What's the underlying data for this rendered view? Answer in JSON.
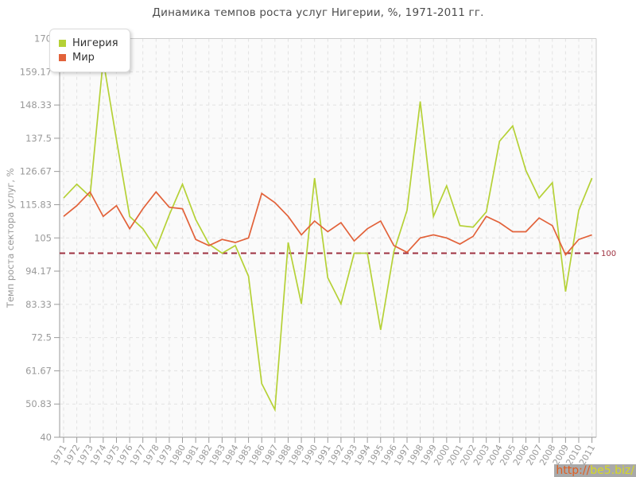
{
  "title": "Динамика темпов роста услуг Нигерии, %, 1971-2011 гг.",
  "legend": {
    "items": [
      {
        "label": "Нигерия",
        "color": "#b5d136"
      },
      {
        "label": "Мир",
        "color": "#e2623a"
      }
    ]
  },
  "watermark": {
    "prefix": "http://",
    "domain": "be5.biz/"
  },
  "reference_line": {
    "value": 100,
    "label": "100",
    "color": "#9e3140"
  },
  "y_axis_title": "Темп роста сектора услуг, %",
  "chart_data": {
    "type": "line",
    "title": "Динамика темпов роста услуг Нигерии, %, 1971-2011 гг.",
    "ylabel": "Темп роста сектора услуг, %",
    "xlabel": "",
    "ylim": [
      40,
      170
    ],
    "ytick_labels": [
      "170",
      "159.17",
      "148.33",
      "137.5",
      "126.67",
      "115.83",
      "105",
      "94.17",
      "83.33",
      "72.5",
      "61.67",
      "50.83",
      "40"
    ],
    "yticks": [
      170,
      159.17,
      148.33,
      137.5,
      126.67,
      115.83,
      105,
      94.17,
      83.33,
      72.5,
      61.67,
      50.83,
      40
    ],
    "grid": true,
    "legend_position": "top-left",
    "reference_line": 100,
    "x": [
      1971,
      1972,
      1973,
      1974,
      1975,
      1976,
      1977,
      1978,
      1979,
      1980,
      1981,
      1982,
      1983,
      1984,
      1985,
      1986,
      1987,
      1988,
      1989,
      1990,
      1991,
      1992,
      1993,
      1994,
      1995,
      1996,
      1997,
      1998,
      1999,
      2000,
      2001,
      2002,
      2003,
      2004,
      2005,
      2006,
      2007,
      2008,
      2009,
      2010,
      2011
    ],
    "series": [
      {
        "name": "Нигерия",
        "color": "#b5d136",
        "values": [
          118,
          122.5,
          118.5,
          163,
          137,
          112,
          108,
          101.5,
          112.5,
          122.5,
          111,
          103,
          100,
          102.5,
          92.5,
          57.5,
          49,
          103.5,
          83.5,
          124.5,
          92,
          83.5,
          100,
          100,
          75,
          100.5,
          114,
          149.5,
          112,
          122,
          109,
          108.5,
          113.5,
          136.5,
          141.5,
          127,
          118,
          123,
          87.5,
          114,
          124.5
        ]
      },
      {
        "name": "Мир",
        "color": "#e2623a",
        "values": [
          112,
          115.5,
          120,
          112,
          115.5,
          108,
          114.5,
          120,
          115,
          114.5,
          104.5,
          102.5,
          104.5,
          103.5,
          105,
          119.5,
          116.5,
          112,
          106,
          110.5,
          107,
          110,
          104,
          108,
          110.5,
          102.5,
          100.3,
          105,
          106,
          105,
          103,
          105.5,
          112,
          110,
          107,
          107,
          111.5,
          109,
          99.5,
          104.5,
          106
        ]
      }
    ]
  }
}
